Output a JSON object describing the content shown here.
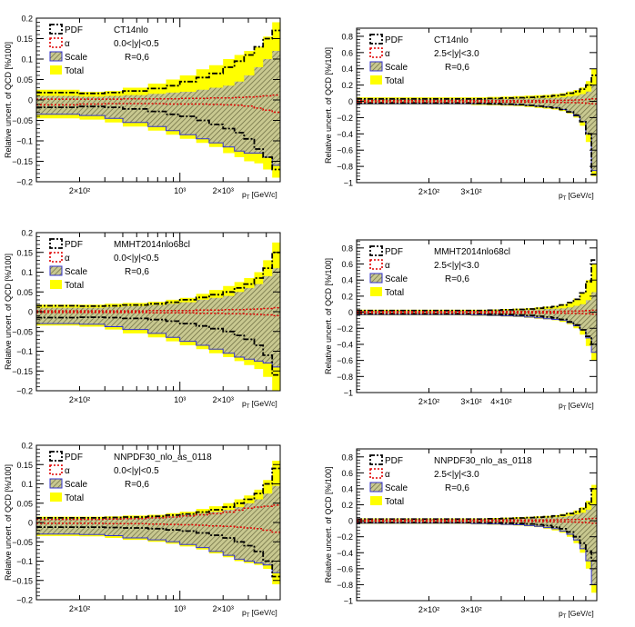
{
  "colors": {
    "total": "#ffff00",
    "scale_hatch": "#9a9a6a",
    "pdf": "#000000",
    "alpha": "#e00000",
    "scale_edge": "#3333cc",
    "axis": "#000000"
  },
  "common": {
    "ylabel": "Relative uncert. of QCD [%/100]",
    "xlabel": "p",
    "xlabel_sub": "T",
    "xlabel_unit": "[GeV/c]",
    "legend": {
      "pdf": "PDF",
      "alpha": "α",
      "scale": "Scale",
      "total": "Total"
    },
    "radius": "R=0,6"
  },
  "chart_data": [
    {
      "id": "ct14-central",
      "type": "area",
      "pdf_set": "CT14nlo",
      "rapidity": "0.0<|y|<0.5",
      "ylim": [
        -0.2,
        0.2
      ],
      "yticks": [
        0.2,
        0.15,
        0.1,
        0.05,
        0,
        -0.05,
        -0.1,
        -0.15,
        -0.2
      ],
      "ytick_labels": [
        "0.2",
        "0.15",
        "0.1",
        "0.05",
        "0",
        "−0.05",
        "−0.1",
        "−0.15",
        "−0.2"
      ],
      "xlim": [
        100,
        5000
      ],
      "xlog": true,
      "xtick_labels": [
        {
          "v": 200,
          "t": "2×10²"
        },
        {
          "v": 1000,
          "t": "10³"
        },
        {
          "v": 2000,
          "t": "2×10³"
        }
      ],
      "bins": [
        100,
        200,
        300,
        400,
        600,
        800,
        1000,
        1300,
        1600,
        2000,
        2400,
        2800,
        3300,
        3800,
        4400,
        5000
      ],
      "total_up": [
        0.025,
        0.02,
        0.022,
        0.03,
        0.04,
        0.05,
        0.06,
        0.075,
        0.085,
        0.1,
        0.11,
        0.12,
        0.13,
        0.155,
        0.19
      ],
      "total_dn": [
        -0.045,
        -0.048,
        -0.055,
        -0.065,
        -0.075,
        -0.085,
        -0.095,
        -0.105,
        -0.115,
        -0.13,
        -0.14,
        -0.15,
        -0.155,
        -0.17,
        -0.19
      ],
      "scale_up": [
        0.01,
        0.008,
        0.01,
        0.012,
        0.015,
        0.018,
        0.02,
        0.025,
        0.03,
        0.035,
        0.045,
        0.06,
        0.08,
        0.1,
        0.12
      ],
      "scale_dn": [
        -0.035,
        -0.038,
        -0.045,
        -0.055,
        -0.065,
        -0.075,
        -0.085,
        -0.095,
        -0.105,
        -0.115,
        -0.125,
        -0.13,
        -0.13,
        -0.14,
        -0.16
      ],
      "pdf_up": [
        0.018,
        0.016,
        0.018,
        0.022,
        0.028,
        0.035,
        0.045,
        0.055,
        0.065,
        0.08,
        0.095,
        0.11,
        0.13,
        0.15,
        0.17
      ],
      "pdf_dn": [
        -0.018,
        -0.016,
        -0.018,
        -0.022,
        -0.028,
        -0.035,
        -0.04,
        -0.05,
        -0.06,
        -0.07,
        -0.08,
        -0.095,
        -0.12,
        -0.14,
        -0.17
      ],
      "alpha_up": [
        0.002,
        0.002,
        0.002,
        0.003,
        0.003,
        0.003,
        0.004,
        0.004,
        0.005,
        0.005,
        0.006,
        0.007,
        0.008,
        0.01,
        0.012
      ],
      "alpha_dn": [
        -0.012,
        -0.01,
        -0.009,
        -0.009,
        -0.009,
        -0.01,
        -0.01,
        -0.01,
        -0.011,
        -0.012,
        -0.013,
        -0.015,
        -0.02,
        -0.025,
        -0.03
      ]
    },
    {
      "id": "ct14-forward",
      "type": "area",
      "pdf_set": "CT14nlo",
      "rapidity": "2.5<|y|<3.0",
      "ylim": [
        -1,
        0.9
      ],
      "yticks": [
        0.8,
        0.6,
        0.4,
        0.2,
        0,
        -0.2,
        -0.4,
        -0.6,
        -0.8,
        -1
      ],
      "ytick_labels": [
        "0.8",
        "0.6",
        "0.4",
        "0.2",
        "0",
        "−0.2",
        "−0.4",
        "−0.6",
        "−0.8",
        "−1"
      ],
      "xlim": [
        100,
        1000
      ],
      "xlog": true,
      "xtick_labels": [
        {
          "v": 200,
          "t": "2×10²"
        },
        {
          "v": 300,
          "t": "3×10²"
        }
      ],
      "bins": [
        100,
        150,
        200,
        250,
        300,
        350,
        400,
        450,
        500,
        550,
        600,
        650,
        700,
        750,
        800,
        850,
        900,
        950,
        1000
      ],
      "total_up": [
        0.05,
        0.05,
        0.05,
        0.05,
        0.05,
        0.055,
        0.06,
        0.065,
        0.07,
        0.075,
        0.08,
        0.09,
        0.1,
        0.12,
        0.14,
        0.17,
        0.25,
        0.4
      ],
      "total_dn": [
        -0.04,
        -0.04,
        -0.04,
        -0.04,
        -0.045,
        -0.05,
        -0.055,
        -0.06,
        -0.07,
        -0.08,
        -0.09,
        -0.1,
        -0.12,
        -0.15,
        -0.2,
        -0.3,
        -0.5,
        -0.92
      ],
      "scale_up": [
        0.03,
        0.03,
        0.03,
        0.03,
        0.03,
        0.03,
        0.03,
        0.035,
        0.035,
        0.04,
        0.04,
        0.045,
        0.05,
        0.06,
        0.07,
        0.09,
        0.12,
        0.2
      ],
      "scale_dn": [
        -0.03,
        -0.03,
        -0.03,
        -0.03,
        -0.03,
        -0.035,
        -0.04,
        -0.045,
        -0.05,
        -0.06,
        -0.07,
        -0.08,
        -0.1,
        -0.13,
        -0.18,
        -0.25,
        -0.4,
        -0.85
      ],
      "pdf_up": [
        0.03,
        0.03,
        0.03,
        0.03,
        0.03,
        0.035,
        0.04,
        0.045,
        0.05,
        0.055,
        0.06,
        0.07,
        0.08,
        0.1,
        0.12,
        0.15,
        0.2,
        0.32
      ],
      "pdf_dn": [
        -0.02,
        -0.02,
        -0.02,
        -0.02,
        -0.025,
        -0.03,
        -0.035,
        -0.04,
        -0.05,
        -0.06,
        -0.07,
        -0.08,
        -0.1,
        -0.13,
        -0.17,
        -0.25,
        -0.4,
        -0.9
      ],
      "alpha_up": [
        0.01,
        0.01,
        0.01,
        0.01,
        0.01,
        0.01,
        0.01,
        0.01,
        0.01,
        0.01,
        0.01,
        0.012,
        0.013,
        0.015,
        0.017,
        0.02,
        0.025,
        0.03
      ],
      "alpha_dn": [
        -0.01,
        -0.01,
        -0.01,
        -0.01,
        -0.01,
        -0.01,
        -0.01,
        -0.01,
        -0.01,
        -0.01,
        -0.01,
        -0.012,
        -0.013,
        -0.015,
        -0.017,
        -0.02,
        -0.025,
        -0.03
      ]
    },
    {
      "id": "mmht-central",
      "type": "area",
      "pdf_set": "MMHT2014nlo68cl",
      "rapidity": "0.0<|y|<0.5",
      "ylim": [
        -0.2,
        0.2
      ],
      "yticks": [
        0.2,
        0.15,
        0.1,
        0.05,
        0,
        -0.05,
        -0.1,
        -0.15,
        -0.2
      ],
      "ytick_labels": [
        "0.2",
        "0.15",
        "0.1",
        "0.05",
        "0",
        "−0.05",
        "−0.1",
        "−0.15",
        "−0.2"
      ],
      "xlim": [
        100,
        5000
      ],
      "xlog": true,
      "xtick_labels": [
        {
          "v": 200,
          "t": "2×10²"
        },
        {
          "v": 1000,
          "t": "10³"
        },
        {
          "v": 2000,
          "t": "2×10³"
        }
      ],
      "bins": [
        100,
        200,
        300,
        400,
        600,
        800,
        1000,
        1300,
        1600,
        2000,
        2400,
        2800,
        3300,
        3800,
        4400,
        5000
      ],
      "total_up": [
        0.018,
        0.018,
        0.02,
        0.022,
        0.025,
        0.03,
        0.035,
        0.045,
        0.055,
        0.065,
        0.075,
        0.085,
        0.1,
        0.13,
        0.175
      ],
      "total_dn": [
        -0.035,
        -0.038,
        -0.045,
        -0.055,
        -0.065,
        -0.075,
        -0.085,
        -0.095,
        -0.105,
        -0.115,
        -0.125,
        -0.135,
        -0.145,
        -0.165,
        -0.2
      ],
      "scale_up": [
        0.01,
        0.01,
        0.012,
        0.014,
        0.017,
        0.02,
        0.024,
        0.03,
        0.035,
        0.04,
        0.05,
        0.06,
        0.07,
        0.09,
        0.11
      ],
      "scale_dn": [
        -0.03,
        -0.032,
        -0.038,
        -0.045,
        -0.055,
        -0.065,
        -0.075,
        -0.085,
        -0.095,
        -0.105,
        -0.115,
        -0.12,
        -0.125,
        -0.13,
        -0.14
      ],
      "pdf_up": [
        0.015,
        0.014,
        0.015,
        0.017,
        0.02,
        0.024,
        0.03,
        0.036,
        0.043,
        0.05,
        0.06,
        0.07,
        0.085,
        0.11,
        0.15
      ],
      "pdf_dn": [
        -0.015,
        -0.014,
        -0.015,
        -0.017,
        -0.02,
        -0.024,
        -0.03,
        -0.036,
        -0.043,
        -0.05,
        -0.06,
        -0.07,
        -0.085,
        -0.11,
        -0.16
      ],
      "alpha_up": [
        0.002,
        0.002,
        0.002,
        0.002,
        0.003,
        0.003,
        0.003,
        0.004,
        0.004,
        0.005,
        0.005,
        0.006,
        0.007,
        0.008,
        0.01
      ],
      "alpha_dn": [
        -0.002,
        -0.002,
        -0.002,
        -0.002,
        -0.003,
        -0.003,
        -0.003,
        -0.004,
        -0.004,
        -0.005,
        -0.005,
        -0.006,
        -0.007,
        -0.008,
        -0.01
      ]
    },
    {
      "id": "mmht-forward",
      "type": "area",
      "pdf_set": "MMHT2014nlo68cl",
      "rapidity": "2.5<|y|<3.0",
      "ylim": [
        -1,
        0.9
      ],
      "yticks": [
        0.8,
        0.6,
        0.4,
        0.2,
        0,
        -0.2,
        -0.4,
        -0.6,
        -0.8,
        -1
      ],
      "ytick_labels": [
        "0.8",
        "0.6",
        "0.4",
        "0.2",
        "0",
        "−0.2",
        "−0.4",
        "−0.6",
        "−0.8",
        "−1"
      ],
      "xlim": [
        100,
        1000
      ],
      "xlog": true,
      "xtick_labels": [
        {
          "v": 200,
          "t": "2×10²"
        },
        {
          "v": 300,
          "t": "3×10²"
        },
        {
          "v": 400,
          "t": "4×10²"
        }
      ],
      "bins": [
        100,
        150,
        200,
        250,
        300,
        350,
        400,
        450,
        500,
        550,
        600,
        650,
        700,
        750,
        800,
        850,
        900,
        950,
        1000
      ],
      "total_up": [
        0.03,
        0.03,
        0.03,
        0.03,
        0.03,
        0.035,
        0.04,
        0.045,
        0.05,
        0.06,
        0.07,
        0.08,
        0.1,
        0.13,
        0.17,
        0.25,
        0.4,
        0.6
      ],
      "total_dn": [
        -0.04,
        -0.04,
        -0.04,
        -0.04,
        -0.045,
        -0.05,
        -0.055,
        -0.06,
        -0.07,
        -0.08,
        -0.09,
        -0.1,
        -0.12,
        -0.15,
        -0.2,
        -0.28,
        -0.42,
        -0.6
      ],
      "scale_up": [
        0.02,
        0.02,
        0.02,
        0.02,
        0.02,
        0.02,
        0.025,
        0.025,
        0.03,
        0.035,
        0.04,
        0.045,
        0.05,
        0.06,
        0.08,
        0.1,
        0.15,
        0.25
      ],
      "scale_dn": [
        -0.03,
        -0.03,
        -0.03,
        -0.03,
        -0.035,
        -0.04,
        -0.045,
        -0.05,
        -0.06,
        -0.07,
        -0.08,
        -0.09,
        -0.1,
        -0.13,
        -0.17,
        -0.22,
        -0.32,
        -0.5
      ],
      "pdf_up": [
        0.02,
        0.02,
        0.02,
        0.02,
        0.02,
        0.025,
        0.03,
        0.035,
        0.04,
        0.05,
        0.06,
        0.07,
        0.09,
        0.12,
        0.16,
        0.24,
        0.38,
        0.65
      ],
      "pdf_dn": [
        -0.02,
        -0.02,
        -0.02,
        -0.02,
        -0.02,
        -0.025,
        -0.03,
        -0.035,
        -0.04,
        -0.05,
        -0.06,
        -0.07,
        -0.09,
        -0.12,
        -0.16,
        -0.22,
        -0.3,
        -0.4
      ],
      "alpha_up": [
        0.01,
        0.01,
        0.01,
        0.01,
        0.01,
        0.01,
        0.01,
        0.01,
        0.01,
        0.01,
        0.01,
        0.01,
        0.012,
        0.013,
        0.015,
        0.017,
        0.02,
        0.025
      ],
      "alpha_dn": [
        -0.01,
        -0.01,
        -0.01,
        -0.01,
        -0.01,
        -0.01,
        -0.01,
        -0.01,
        -0.01,
        -0.01,
        -0.01,
        -0.01,
        -0.012,
        -0.013,
        -0.015,
        -0.017,
        -0.02,
        -0.025
      ]
    },
    {
      "id": "nnpdf-central",
      "type": "area",
      "pdf_set": "NNPDF30_nlo_as_0118",
      "rapidity": "0.0<|y|<0.5",
      "ylim": [
        -0.2,
        0.2
      ],
      "yticks": [
        0.2,
        0.15,
        0.1,
        0.05,
        0,
        -0.05,
        -0.1,
        -0.15,
        -0.2
      ],
      "ytick_labels": [
        "0.2",
        "0.15",
        "0.1",
        "0.05",
        "0",
        "−0.05",
        "−0.1",
        "−0.15",
        "−0.2"
      ],
      "xlim": [
        100,
        5000
      ],
      "xlog": true,
      "xtick_labels": [
        {
          "v": 200,
          "t": "2×10²"
        },
        {
          "v": 1000,
          "t": "10³"
        },
        {
          "v": 2000,
          "t": "2×10³"
        }
      ],
      "bins": [
        100,
        200,
        300,
        400,
        600,
        800,
        1000,
        1300,
        1600,
        2000,
        2400,
        2800,
        3300,
        3800,
        4400,
        5000
      ],
      "total_up": [
        0.015,
        0.015,
        0.016,
        0.018,
        0.02,
        0.024,
        0.028,
        0.035,
        0.042,
        0.05,
        0.06,
        0.07,
        0.085,
        0.11,
        0.16
      ],
      "total_dn": [
        -0.035,
        -0.036,
        -0.04,
        -0.045,
        -0.05,
        -0.055,
        -0.062,
        -0.07,
        -0.08,
        -0.09,
        -0.1,
        -0.105,
        -0.11,
        -0.12,
        -0.16
      ],
      "scale_up": [
        0.01,
        0.01,
        0.011,
        0.012,
        0.014,
        0.017,
        0.02,
        0.024,
        0.028,
        0.033,
        0.04,
        0.05,
        0.06,
        0.075,
        0.095
      ],
      "scale_dn": [
        -0.03,
        -0.031,
        -0.034,
        -0.04,
        -0.045,
        -0.05,
        -0.057,
        -0.065,
        -0.075,
        -0.085,
        -0.095,
        -0.1,
        -0.105,
        -0.11,
        -0.13
      ],
      "pdf_up": [
        0.012,
        0.012,
        0.013,
        0.014,
        0.016,
        0.019,
        0.022,
        0.027,
        0.033,
        0.04,
        0.05,
        0.06,
        0.075,
        0.1,
        0.14
      ],
      "pdf_dn": [
        -0.012,
        -0.012,
        -0.013,
        -0.014,
        -0.016,
        -0.019,
        -0.022,
        -0.027,
        -0.033,
        -0.04,
        -0.05,
        -0.06,
        -0.075,
        -0.1,
        -0.14
      ],
      "alpha_up": [
        0.008,
        0.008,
        0.009,
        0.01,
        0.012,
        0.014,
        0.017,
        0.02,
        0.023,
        0.027,
        0.032,
        0.037,
        0.04,
        0.042,
        0.045
      ],
      "alpha_dn": [
        -0.002,
        -0.002,
        -0.003,
        -0.003,
        -0.004,
        -0.005,
        -0.006,
        -0.007,
        -0.009,
        -0.01,
        -0.012,
        -0.014,
        -0.016,
        -0.02,
        -0.025
      ]
    },
    {
      "id": "nnpdf-forward",
      "type": "area",
      "pdf_set": "NNPDF30_nlo_as_0118",
      "rapidity": "2.5<|y|<3.0",
      "ylim": [
        -1,
        0.9
      ],
      "yticks": [
        0.8,
        0.6,
        0.4,
        0.2,
        0,
        -0.2,
        -0.4,
        -0.6,
        -0.8,
        -1
      ],
      "ytick_labels": [
        "0.8",
        "0.6",
        "0.4",
        "0.2",
        "0",
        "−0.2",
        "−0.4",
        "−0.6",
        "−0.8",
        "−1"
      ],
      "xlim": [
        100,
        1000
      ],
      "xlog": true,
      "xtick_labels": [
        {
          "v": 200,
          "t": "2×10²"
        },
        {
          "v": 300,
          "t": "3×10²"
        }
      ],
      "bins": [
        100,
        150,
        200,
        250,
        300,
        350,
        400,
        450,
        500,
        550,
        600,
        650,
        700,
        750,
        800,
        850,
        900,
        950,
        1000
      ],
      "total_up": [
        0.03,
        0.03,
        0.03,
        0.03,
        0.03,
        0.035,
        0.04,
        0.045,
        0.05,
        0.055,
        0.06,
        0.07,
        0.085,
        0.1,
        0.13,
        0.17,
        0.25,
        0.45
      ],
      "total_dn": [
        -0.04,
        -0.04,
        -0.04,
        -0.04,
        -0.045,
        -0.05,
        -0.055,
        -0.06,
        -0.07,
        -0.08,
        -0.1,
        -0.12,
        -0.15,
        -0.2,
        -0.28,
        -0.4,
        -0.6,
        -0.9
      ],
      "scale_up": [
        0.02,
        0.02,
        0.02,
        0.02,
        0.02,
        0.02,
        0.025,
        0.025,
        0.03,
        0.035,
        0.04,
        0.045,
        0.05,
        0.06,
        0.08,
        0.1,
        0.14,
        0.2
      ],
      "scale_dn": [
        -0.03,
        -0.03,
        -0.03,
        -0.03,
        -0.035,
        -0.04,
        -0.045,
        -0.05,
        -0.06,
        -0.07,
        -0.085,
        -0.1,
        -0.13,
        -0.17,
        -0.24,
        -0.35,
        -0.5,
        -0.8
      ],
      "pdf_up": [
        0.02,
        0.02,
        0.02,
        0.02,
        0.02,
        0.025,
        0.03,
        0.035,
        0.04,
        0.045,
        0.05,
        0.06,
        0.07,
        0.09,
        0.11,
        0.15,
        0.22,
        0.4
      ],
      "pdf_dn": [
        -0.02,
        -0.02,
        -0.02,
        -0.02,
        -0.02,
        -0.025,
        -0.03,
        -0.035,
        -0.04,
        -0.05,
        -0.06,
        -0.08,
        -0.1,
        -0.14,
        -0.2,
        -0.28,
        -0.38,
        -0.5
      ],
      "alpha_up": [
        0.01,
        0.01,
        0.01,
        0.01,
        0.01,
        0.01,
        0.01,
        0.01,
        0.01,
        0.01,
        0.01,
        0.012,
        0.013,
        0.015,
        0.017,
        0.02,
        0.025,
        0.03
      ],
      "alpha_dn": [
        -0.01,
        -0.01,
        -0.01,
        -0.01,
        -0.01,
        -0.01,
        -0.01,
        -0.01,
        -0.01,
        -0.01,
        -0.01,
        -0.012,
        -0.013,
        -0.015,
        -0.017,
        -0.02,
        -0.025,
        -0.03
      ]
    }
  ]
}
